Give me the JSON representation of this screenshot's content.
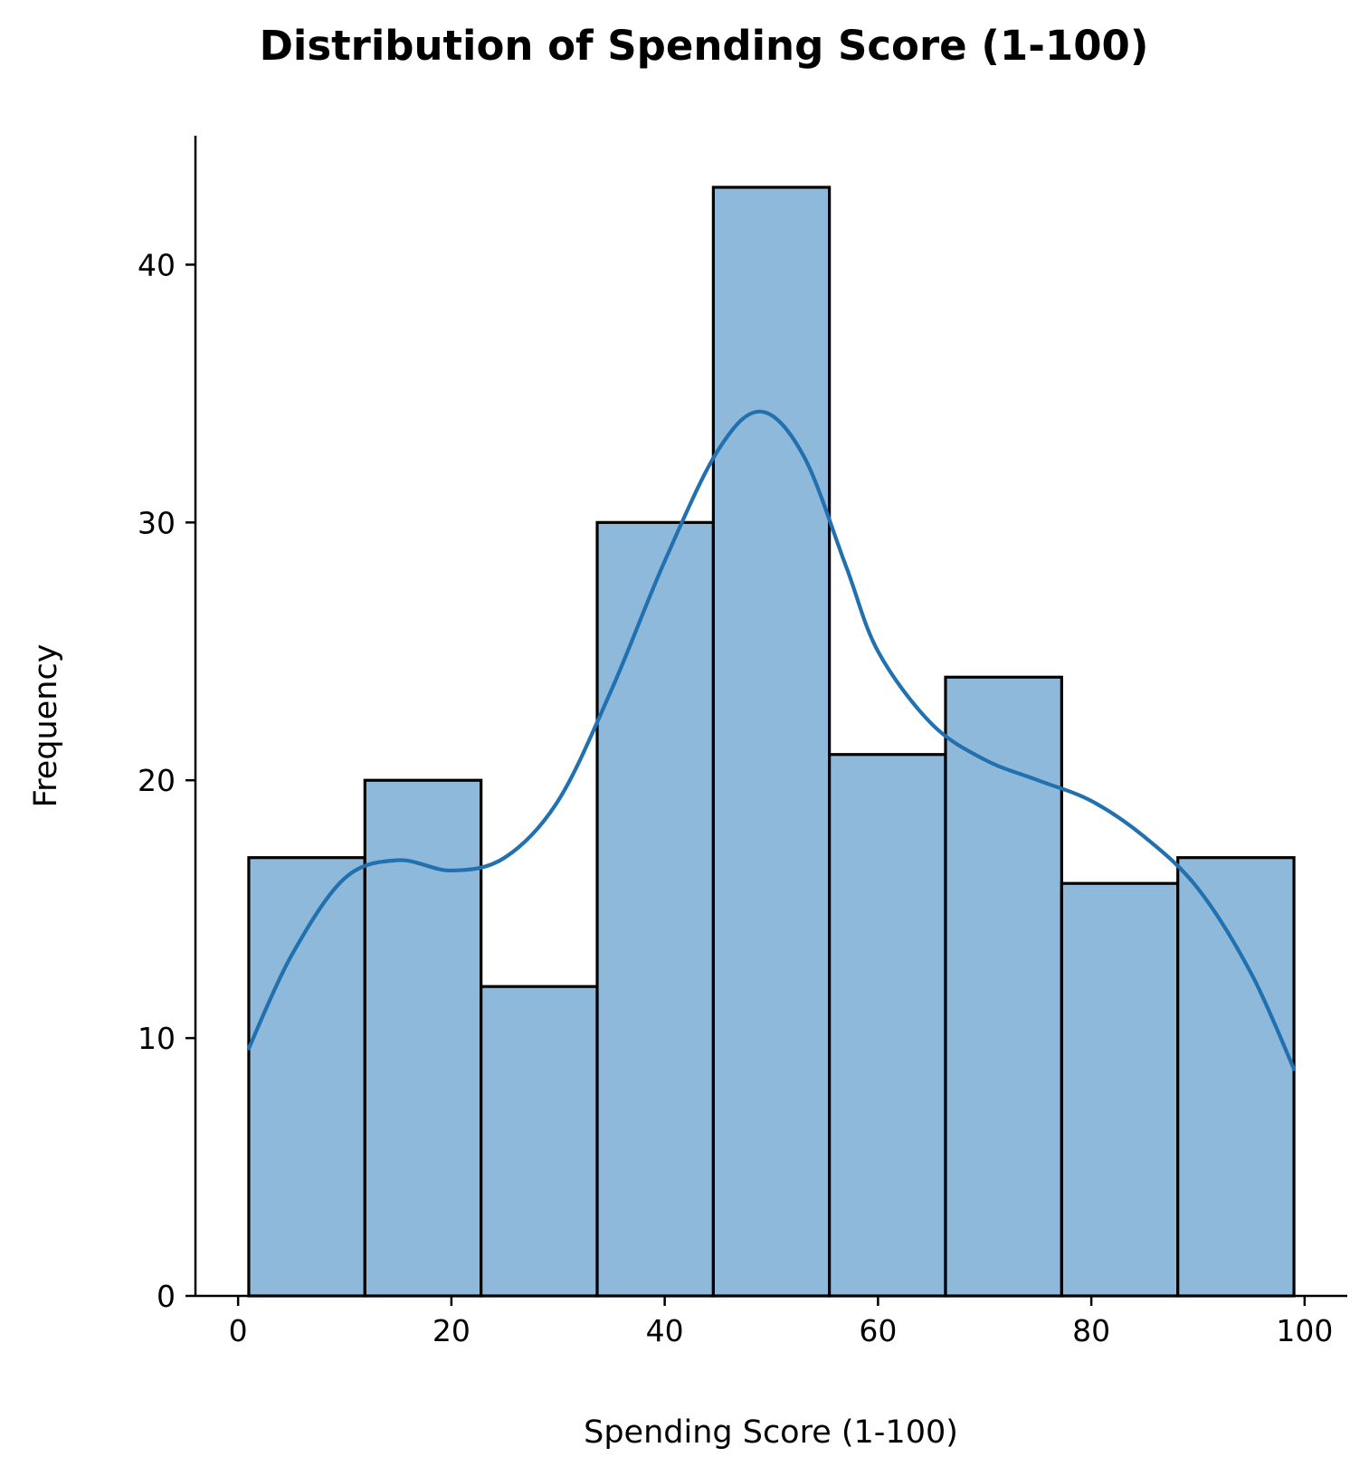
{
  "chart_data": {
    "type": "bar",
    "subtype": "histogram",
    "title": "Distribution of Spending Score (1-100)",
    "xlabel": "Spending Score (1-100)",
    "ylabel": "Frequency",
    "xlim": [
      -4,
      104
    ],
    "ylim": [
      0,
      45
    ],
    "x_ticks": [
      0,
      20,
      40,
      60,
      80,
      100
    ],
    "y_ticks": [
      0,
      10,
      20,
      30,
      40
    ],
    "bin_edges": [
      1,
      11.89,
      22.78,
      33.67,
      44.56,
      55.44,
      66.33,
      77.22,
      88.11,
      99
    ],
    "values": [
      17,
      20,
      12,
      30,
      43,
      21,
      24,
      16,
      17
    ],
    "kde": {
      "x": [
        1,
        5,
        10,
        15,
        20,
        25,
        30,
        35,
        40,
        45,
        49,
        53,
        57,
        60,
        65,
        70,
        75,
        80,
        85,
        90,
        95,
        99
      ],
      "y": [
        9.6,
        13.2,
        16.2,
        16.9,
        16.5,
        17.0,
        19.2,
        23.5,
        28.5,
        32.8,
        34.3,
        32.6,
        28.3,
        25.0,
        22.2,
        20.8,
        20.0,
        19.2,
        17.8,
        15.8,
        12.5,
        8.8
      ]
    },
    "grid": false,
    "legend": "none",
    "colors": {
      "bar_fill": "#8eb9da",
      "bar_edge": "#000000",
      "kde_line": "#2171b0"
    }
  }
}
